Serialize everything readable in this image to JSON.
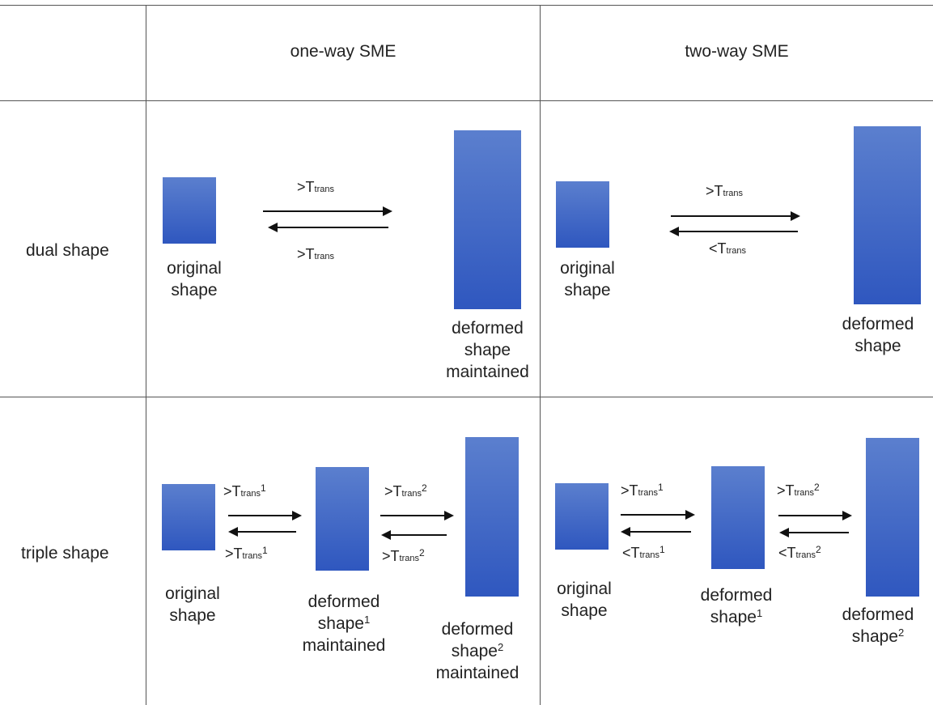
{
  "columns": {
    "one_way": "one-way SME",
    "two_way": "two-way SME"
  },
  "rows": {
    "dual": "dual shape",
    "triple": "triple shape"
  },
  "arrow_labels": {
    "gt": ">T",
    "lt": "<T",
    "sub": "trans",
    "sup1": "1",
    "sup2": "2"
  },
  "shape_labels": {
    "original": "original shape",
    "original_l1": "original",
    "original_l2": "shape",
    "deformed": "deformed",
    "shape": "shape",
    "maintained": "maintained",
    "sup1": "1",
    "sup2": "2"
  }
}
